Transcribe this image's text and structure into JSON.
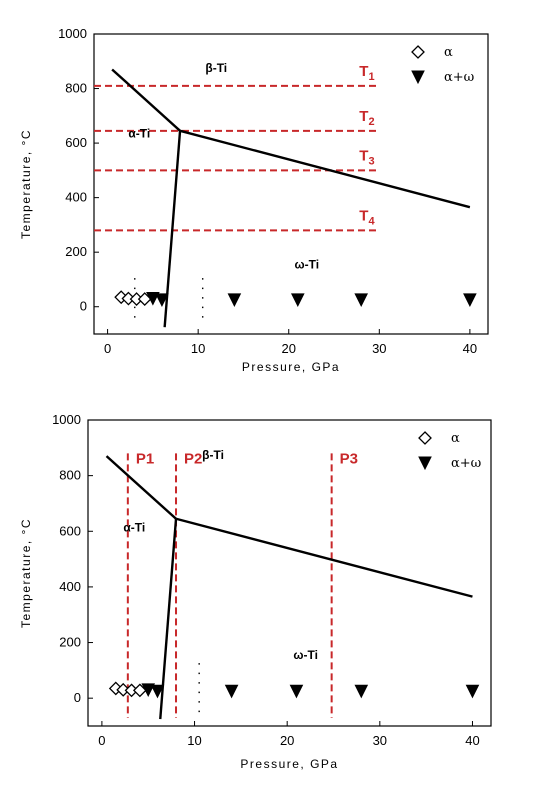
{
  "chart_data": [
    {
      "type": "scatter",
      "xlabel": "Pressure, GPa",
      "ylabel": "Temperature, °C",
      "xlim": [
        -1.5,
        42
      ],
      "ylim": [
        -100,
        1000
      ],
      "xticks": [
        0,
        10,
        20,
        30,
        40
      ],
      "yticks": [
        0,
        200,
        400,
        600,
        800,
        1000
      ],
      "xtick_labels": [
        "0",
        "10",
        "20",
        "30",
        "40"
      ],
      "ytick_labels": [
        "0",
        "200",
        "400",
        "600",
        "800",
        "1000"
      ],
      "grid": false,
      "legend_position": "top-right",
      "legend": [
        {
          "name": "α",
          "symbol": "diamond-open"
        },
        {
          "name": "α+ω",
          "symbol": "triangle-down-filled"
        }
      ],
      "series": [
        {
          "name": "α",
          "x": [
            1.5,
            2.3,
            3.2,
            4.1
          ],
          "y": [
            35,
            30,
            28,
            28
          ]
        },
        {
          "name": "α+ω",
          "x": [
            5.0,
            6.0,
            14,
            21,
            28,
            40
          ],
          "y": [
            30,
            25,
            25,
            25,
            25,
            25
          ]
        }
      ],
      "phase_boundaries": [
        {
          "x": [
            0.5,
            8
          ],
          "y": [
            870,
            645
          ]
        },
        {
          "x": [
            8,
            40
          ],
          "y": [
            645,
            365
          ]
        },
        {
          "x": [
            8,
            6.3
          ],
          "y": [
            645,
            -75
          ]
        }
      ],
      "phase_labels": [
        {
          "text": "β-Ti",
          "x": 12,
          "y": 860
        },
        {
          "text": "α-Ti",
          "x": 3.5,
          "y": 620
        },
        {
          "text": "ω-Ti",
          "x": 22,
          "y": 140
        }
      ],
      "reference_lines": [
        {
          "orientation": "horizontal",
          "value": 810,
          "label": "T",
          "subscript": "1",
          "x_max": 30
        },
        {
          "orientation": "horizontal",
          "value": 645,
          "label": "T",
          "subscript": "2",
          "x_max": 30
        },
        {
          "orientation": "horizontal",
          "value": 500,
          "label": "T",
          "subscript": "3",
          "x_max": 30
        },
        {
          "orientation": "horizontal",
          "value": 280,
          "label": "T",
          "subscript": "4",
          "x_max": 30
        }
      ],
      "dotted_markers": [
        {
          "x": 3,
          "y_from": -40,
          "y_to": 130
        },
        {
          "x": 10.5,
          "y_from": -40,
          "y_to": 130
        }
      ],
      "colors": {
        "reference": "#c8282a",
        "boundary": "#000000",
        "marker": "#000000"
      }
    },
    {
      "type": "scatter",
      "xlabel": "Pressure, GPa",
      "ylabel": "Temperature, °C",
      "xlim": [
        -1.5,
        42
      ],
      "ylim": [
        -100,
        1000
      ],
      "xticks": [
        0,
        10,
        20,
        30,
        40
      ],
      "yticks": [
        0,
        200,
        400,
        600,
        800,
        1000
      ],
      "xtick_labels": [
        "0",
        "10",
        "20",
        "30",
        "40"
      ],
      "ytick_labels": [
        "0",
        "200",
        "400",
        "600",
        "800",
        "1000"
      ],
      "grid": false,
      "legend_position": "top-right",
      "legend": [
        {
          "name": "α",
          "symbol": "diamond-open"
        },
        {
          "name": "α+ω",
          "symbol": "triangle-down-filled"
        }
      ],
      "series": [
        {
          "name": "α",
          "x": [
            1.5,
            2.3,
            3.2,
            4.1
          ],
          "y": [
            35,
            30,
            28,
            28
          ]
        },
        {
          "name": "α+ω",
          "x": [
            5.0,
            6.0,
            14,
            21,
            28,
            40
          ],
          "y": [
            30,
            25,
            25,
            25,
            25,
            25
          ]
        }
      ],
      "phase_boundaries": [
        {
          "x": [
            0.5,
            8
          ],
          "y": [
            870,
            645
          ]
        },
        {
          "x": [
            8,
            40
          ],
          "y": [
            645,
            365
          ]
        },
        {
          "x": [
            8,
            6.3
          ],
          "y": [
            645,
            -75
          ]
        }
      ],
      "phase_labels": [
        {
          "text": "β-Ti",
          "x": 12,
          "y": 860
        },
        {
          "text": "α-Ti",
          "x": 3.5,
          "y": 600
        },
        {
          "text": "ω-Ti",
          "x": 22,
          "y": 140
        }
      ],
      "reference_lines": [
        {
          "orientation": "vertical",
          "value": 2.8,
          "label": "P1"
        },
        {
          "orientation": "vertical",
          "value": 8.0,
          "label": "P2"
        },
        {
          "orientation": "vertical",
          "value": 24.8,
          "label": "P3"
        }
      ],
      "dotted_markers": [
        {
          "x": 10.5,
          "y_from": -50,
          "y_to": 140
        }
      ],
      "colors": {
        "reference": "#c8282a",
        "boundary": "#000000",
        "marker": "#000000"
      }
    }
  ]
}
